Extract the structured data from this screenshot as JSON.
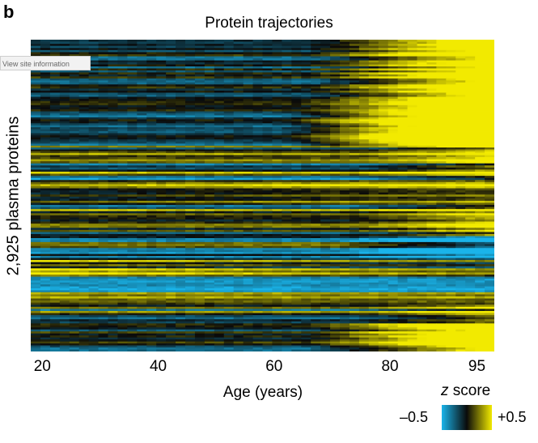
{
  "panel": {
    "letter": "b"
  },
  "tooltip": {
    "text": "View site information"
  },
  "chart_data": {
    "type": "heatmap",
    "title": "Protein trajectories",
    "xlabel": "Age (years)",
    "ylabel": "2,925 plasma proteins",
    "xlim": [
      18,
      98
    ],
    "x_ticks": [
      20,
      40,
      60,
      80,
      95
    ],
    "x_tick_labels": [
      "20",
      "40",
      "60",
      "80",
      "95"
    ],
    "n_rows": 2925,
    "colorbar": {
      "title_italic": "z",
      "title_rest": " score",
      "min_label": "–0.5",
      "max_label": "+0.5",
      "range": [
        -0.5,
        0.5
      ]
    },
    "colors": {
      "low": "#1ab4ea",
      "mid": "#0a0a0a",
      "high": "#f2ea00"
    },
    "bands": [
      {
        "rows": 0.06,
        "trend": "up-late"
      },
      {
        "rows": 0.09,
        "trend": "up-late"
      },
      {
        "rows": 0.08,
        "trend": "up-late"
      },
      {
        "rows": 0.07,
        "trend": "up-strong"
      },
      {
        "rows": 0.04,
        "trend": "up-strong"
      },
      {
        "rows": 0.03,
        "trend": "mixed"
      },
      {
        "rows": 0.08,
        "trend": "mixed"
      },
      {
        "rows": 0.08,
        "trend": "up-mid"
      },
      {
        "rows": 0.1,
        "trend": "mixed"
      },
      {
        "rows": 0.07,
        "trend": "down-late"
      },
      {
        "rows": 0.06,
        "trend": "up-early"
      },
      {
        "rows": 0.05,
        "trend": "down-blue"
      },
      {
        "rows": 0.04,
        "trend": "mixed-yellow"
      },
      {
        "rows": 0.06,
        "trend": "mixed"
      },
      {
        "rows": 0.09,
        "trend": "up-late"
      }
    ]
  }
}
